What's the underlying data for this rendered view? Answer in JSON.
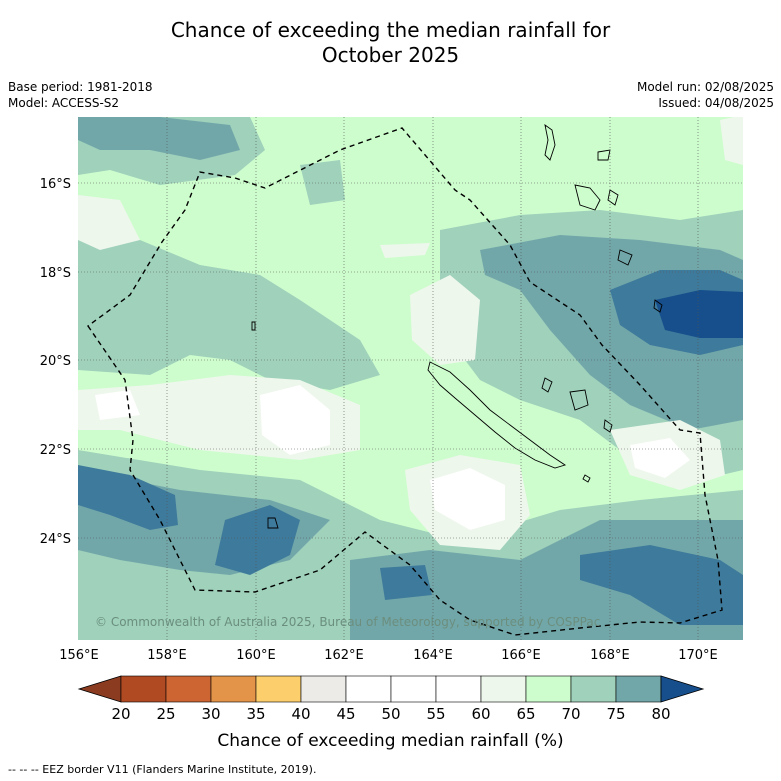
{
  "title_line1": "Chance of exceeding the median rainfall for",
  "title_line2": "October 2025",
  "base_period": "Base period: 1981-2018",
  "model": "Model: ACCESS-S2",
  "model_run": "Model run: 02/08/2025",
  "issued": "Issued: 04/08/2025",
  "copyright": "© Commonwealth of Australia 2025, Bureau of Meteorology, supported by COSPPac",
  "lat_labels": [
    "16°S",
    "18°S",
    "20°S",
    "22°S",
    "24°S"
  ],
  "lon_labels": [
    "156°E",
    "158°E",
    "160°E",
    "162°E",
    "164°E",
    "166°E",
    "168°E",
    "170°E"
  ],
  "colorbar": {
    "title": "Chance of exceeding median rainfall (%)",
    "ticks": [
      "20",
      "25",
      "30",
      "35",
      "40",
      "45",
      "50",
      "55",
      "60",
      "65",
      "70",
      "75",
      "80"
    ],
    "colors": [
      "#b04a22",
      "#cc6531",
      "#e39448",
      "#fdcf6c",
      "#ecebe8",
      "#ffffff",
      "#ffffff",
      "#ffffff",
      "#eef7ec",
      "#cdfdcd",
      "#9fd1bb",
      "#72a7a9",
      "#3e7a9b"
    ],
    "under_color": "#8b3b20",
    "over_color": "#164f8b"
  },
  "legend_note": "-- -- -- EEZ border V11 (Flanders Marine Institute, 2019).",
  "colors": {
    "light_green": "#cdfdcd",
    "mid_green": "#9fd1bb",
    "teal": "#72a7a9",
    "blue": "#3e7a9b",
    "dark_blue": "#164f8b",
    "pale": "#eef7ec"
  }
}
